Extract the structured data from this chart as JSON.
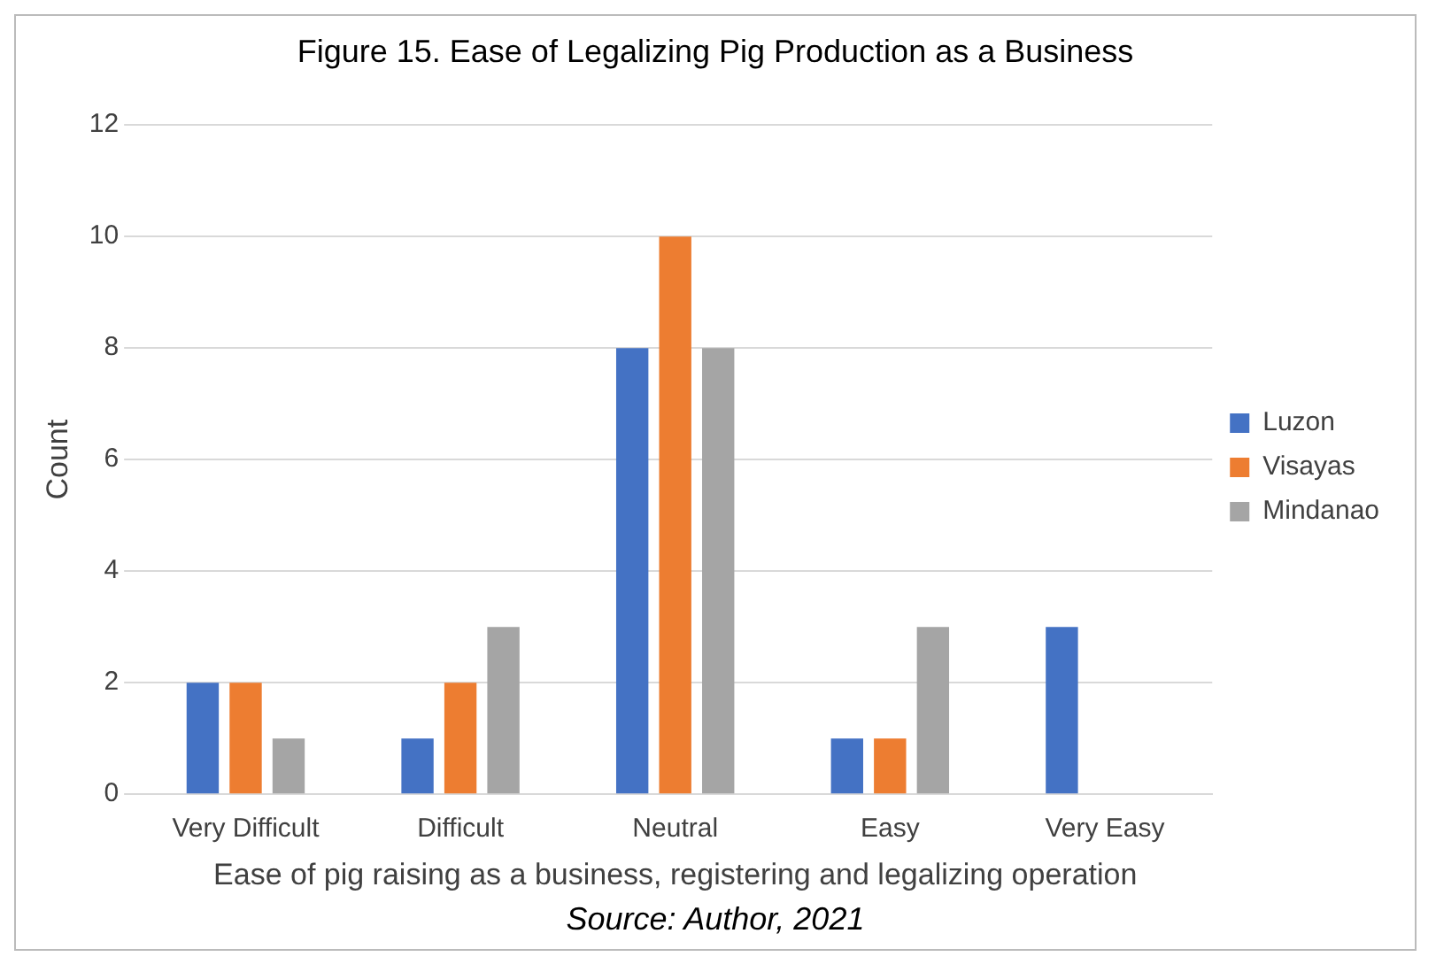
{
  "chart_data": {
    "type": "bar",
    "title": "Figure 15. Ease of Legalizing Pig Production as a Business",
    "categories": [
      "Very Difficult",
      "Difficult",
      "Neutral",
      "Easy",
      "Very Easy"
    ],
    "series": [
      {
        "name": "Luzon",
        "color": "#4472c4",
        "values": [
          2,
          1,
          8,
          1,
          3
        ]
      },
      {
        "name": "Visayas",
        "color": "#ed7d31",
        "values": [
          2,
          2,
          10,
          1,
          0
        ]
      },
      {
        "name": "Mindanao",
        "color": "#a5a5a5",
        "values": [
          1,
          3,
          8,
          3,
          0
        ]
      }
    ],
    "xlabel": "Ease of pig raising as a business, registering and legalizing operation",
    "ylabel": "Count",
    "ylim": [
      0,
      12
    ],
    "yticks": [
      0,
      2,
      4,
      6,
      8,
      10,
      12
    ],
    "grid": "y",
    "legend": "right",
    "annotations": [
      "Source:  Author, 2021"
    ]
  }
}
